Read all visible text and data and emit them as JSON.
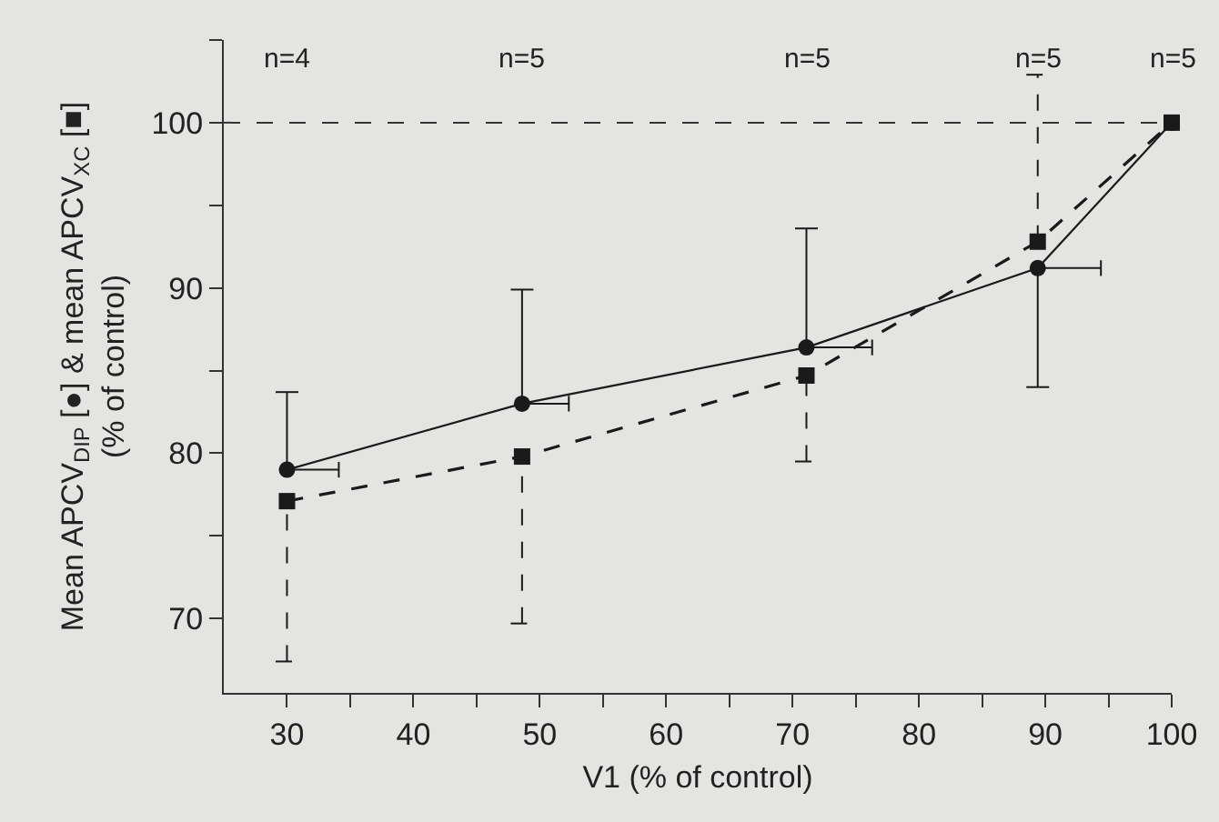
{
  "chart_data": {
    "type": "line",
    "xlabel": "V1 (% of control)",
    "ylabel": "Mean APCV$_{DIP}$ [●] & mean APCV$_{XC}$ [■]\n(% of control)",
    "x": [
      30,
      48.6,
      71.1,
      89.4,
      100
    ],
    "series": [
      {
        "color": "#1a1a1a",
        "marker": "circle",
        "line_style": "solid",
        "values": [
          79.0,
          83.0,
          86.4,
          91.2,
          100
        ],
        "errors": [
          [
            79.0,
            83.7
          ],
          [
            83.0,
            89.9
          ],
          [
            86.4,
            93.6
          ],
          [
            84.0,
            91.2
          ],
          null
        ],
        "xerrors": [
          [
            30,
            34.1
          ],
          [
            48.6,
            52.3
          ],
          [
            71.1,
            76.3
          ],
          [
            89.4,
            94.4
          ],
          null
        ]
      },
      {
        "color": "#1a1a1a",
        "marker": "square",
        "line_style": "dashed",
        "values": [
          77.1,
          79.8,
          84.7,
          92.8,
          100
        ],
        "errors": [
          [
            67.4,
            77.1
          ],
          [
            69.7,
            79.8
          ],
          [
            79.5,
            84.7
          ],
          [
            92.8,
            102.9
          ],
          null
        ]
      }
    ],
    "xlim": [
      25,
      100
    ],
    "xticks": [
      30,
      {
        "value": 35,
        "label": null
      },
      40,
      {
        "value": 45,
        "label": null
      },
      50,
      {
        "value": 55,
        "label": null
      },
      60,
      {
        "value": 65,
        "label": null
      },
      70,
      {
        "value": 75,
        "label": null
      },
      80,
      {
        "value": 85,
        "label": null
      },
      90,
      {
        "value": 95,
        "label": null
      },
      100
    ],
    "ylim": [
      65.5,
      105
    ],
    "yticks": [
      70,
      {
        "value": 75,
        "label": null
      },
      80,
      {
        "value": 85,
        "label": null
      },
      90,
      {
        "value": 95,
        "label": null
      },
      100,
      {
        "value": 105,
        "label": null
      }
    ],
    "ref_lines": [
      {
        "axis": "y",
        "value": 100,
        "line_style": "dashed"
      }
    ],
    "annotations": [
      "n=4",
      "n=5",
      "n=5",
      "n=5",
      "n=5"
    ],
    "grid": false
  }
}
